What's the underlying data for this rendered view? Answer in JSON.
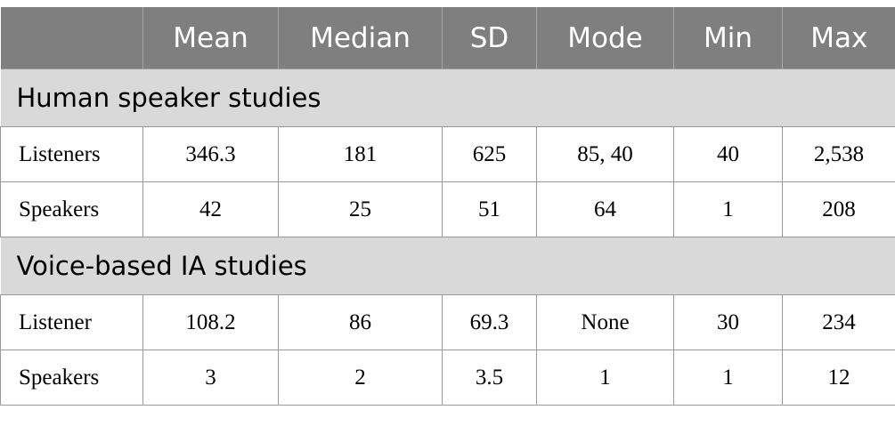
{
  "table": {
    "columns": [
      "Mean",
      "Median",
      "SD",
      "Mode",
      "Min",
      "Max"
    ],
    "sections": [
      {
        "title": "Human speaker studies",
        "rows": [
          [
            "Listeners",
            "346.3",
            "181",
            "625",
            "85, 40",
            "40",
            "2,538"
          ],
          [
            "Speakers",
            "42",
            "25",
            "51",
            "64",
            "1",
            "208"
          ]
        ]
      },
      {
        "title": "Voice-based IA studies",
        "rows": [
          [
            "Listener",
            "108.2",
            "86",
            "69.3",
            "None",
            "30",
            "234"
          ],
          [
            "Speakers",
            "3",
            "2",
            "3.5",
            "1",
            "1",
            "12"
          ]
        ]
      }
    ]
  }
}
